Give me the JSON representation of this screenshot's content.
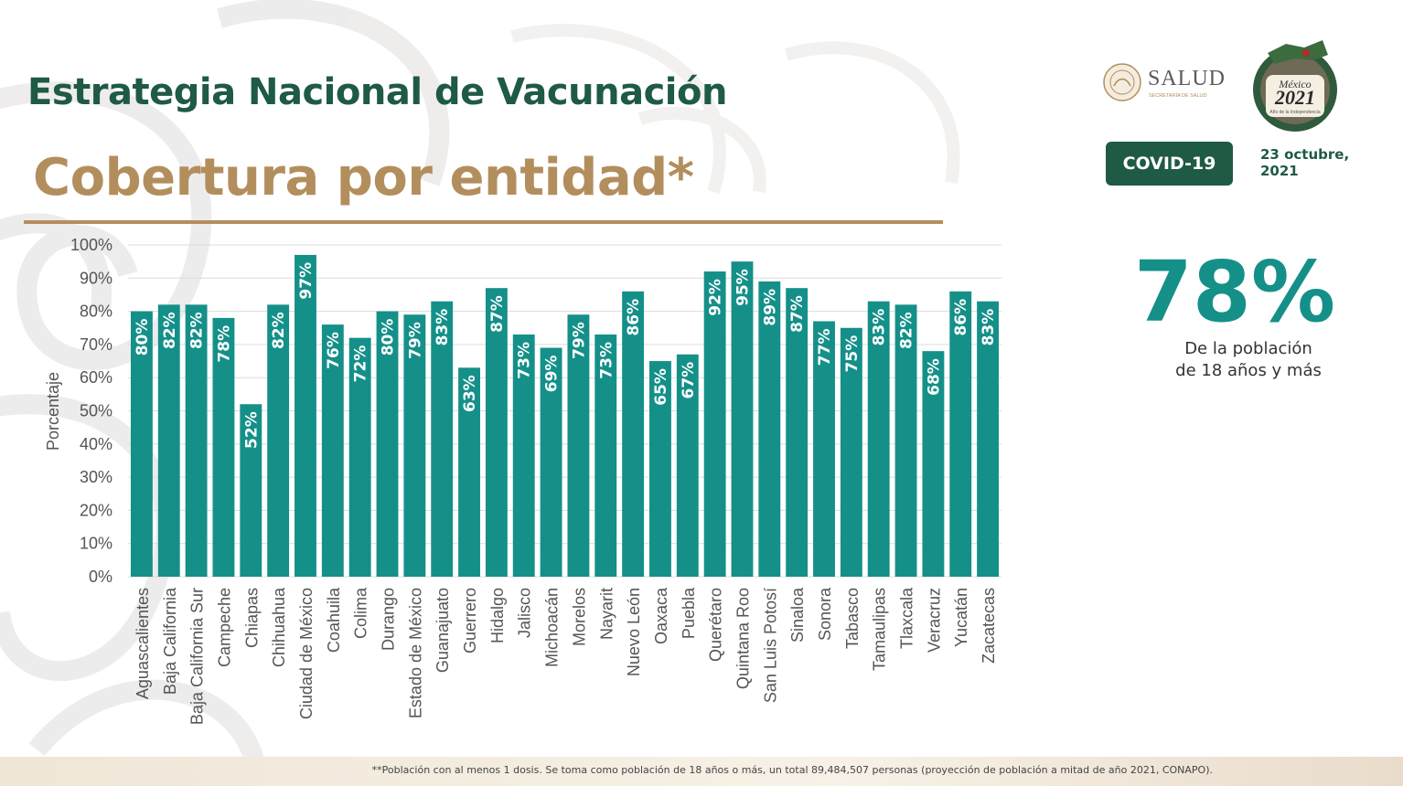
{
  "header": {
    "title": "Estrategia Nacional de Vacunación",
    "subtitle": "Cobertura por entidad*"
  },
  "logos": {
    "salud_text": "SALUD",
    "salud_subtext": "SECRETARÍA DE SALUD",
    "mexico_2021_text": "México",
    "mexico_2021_year": "2021",
    "mexico_2021_caption": "Año de la Independencia"
  },
  "badge": {
    "label": "COVID-19"
  },
  "date": {
    "line1": "23 octubre,",
    "line2": "2021"
  },
  "summary": {
    "value": "78%",
    "description_line1": "De la población",
    "description_line2": "de 18 años y más"
  },
  "footnote": "**Población con al menos 1 dosis. Se toma como población de 18 años o más, un total 89,484,507 personas (proyección de población a mitad de año 2021, CONAPO).",
  "colors": {
    "bar": "#149089",
    "title_green": "#1f5a45",
    "title_gold": "#b38e5d",
    "badge_bg": "#1f5a45"
  },
  "chart_data": {
    "type": "bar",
    "ylabel": "Porcentaje",
    "ylim": [
      0,
      100
    ],
    "yticks": [
      "0%",
      "10%",
      "20%",
      "30%",
      "40%",
      "50%",
      "60%",
      "70%",
      "80%",
      "90%",
      "100%"
    ],
    "grid": true,
    "categories": [
      "Aguascalientes",
      "Baja California",
      "Baja California Sur",
      "Campeche",
      "Chiapas",
      "Chihuahua",
      "Ciudad de México",
      "Coahuila",
      "Colima",
      "Durango",
      "Estado de México",
      "Guanajuato",
      "Guerrero",
      "Hidalgo",
      "Jalisco",
      "Michoacán",
      "Morelos",
      "Nayarit",
      "Nuevo León",
      "Oaxaca",
      "Puebla",
      "Querétaro",
      "Quintana Roo",
      "San Luis Potosí",
      "Sinaloa",
      "Sonora",
      "Tabasco",
      "Tamaulipas",
      "Tlaxcala",
      "Veracruz",
      "Yucatán",
      "Zacatecas"
    ],
    "values": [
      80,
      82,
      82,
      78,
      52,
      82,
      97,
      76,
      72,
      80,
      79,
      83,
      63,
      87,
      73,
      69,
      79,
      73,
      86,
      65,
      67,
      92,
      95,
      89,
      87,
      77,
      75,
      83,
      82,
      68,
      86,
      83
    ],
    "labels": [
      "80%",
      "82%",
      "82%",
      "78%",
      "52%",
      "82%",
      "97%",
      "76%",
      "72%",
      "80%",
      "79%",
      "83%",
      "63%",
      "87%",
      "73%",
      "69%",
      "79%",
      "73%",
      "86%",
      "65%",
      "67%",
      "92%",
      "95%",
      "89%",
      "87%",
      "77%",
      "75%",
      "83%",
      "82%",
      "68%",
      "86%",
      "83%"
    ]
  }
}
